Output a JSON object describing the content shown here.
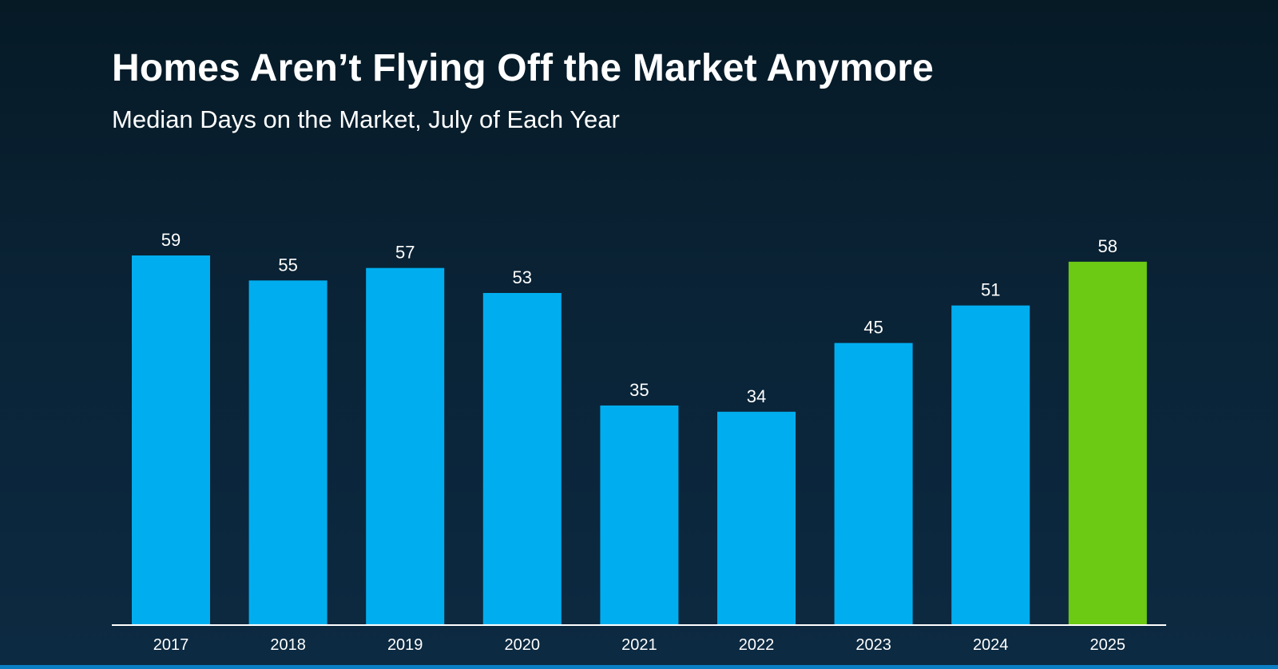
{
  "header": {
    "title": "Homes Aren’t Flying Off the Market Anymore",
    "subtitle": "Median Days on the Market, July of Each Year"
  },
  "chart_data": {
    "type": "bar",
    "title": "Homes Aren’t Flying Off the Market Anymore",
    "subtitle": "Median Days on the Market, July of Each Year",
    "categories": [
      "2017",
      "2018",
      "2019",
      "2020",
      "2021",
      "2022",
      "2023",
      "2024",
      "2025"
    ],
    "values": [
      59,
      55,
      57,
      53,
      35,
      34,
      45,
      51,
      58
    ],
    "data_labels": [
      "59",
      "55",
      "57",
      "53",
      "35",
      "34",
      "45",
      "51",
      "58"
    ],
    "bar_colors": [
      "#00aeef",
      "#00aeef",
      "#00aeef",
      "#00aeef",
      "#00aeef",
      "#00aeef",
      "#00aeef",
      "#00aeef",
      "#6cc914"
    ],
    "xlabel": "",
    "ylabel": "",
    "ylim": [
      0,
      59
    ],
    "grid": false,
    "legend": "none",
    "colors": {
      "bar": "#00aeef",
      "highlight": "#6cc914",
      "axis": "#ffffff",
      "text": "#ffffff"
    }
  }
}
